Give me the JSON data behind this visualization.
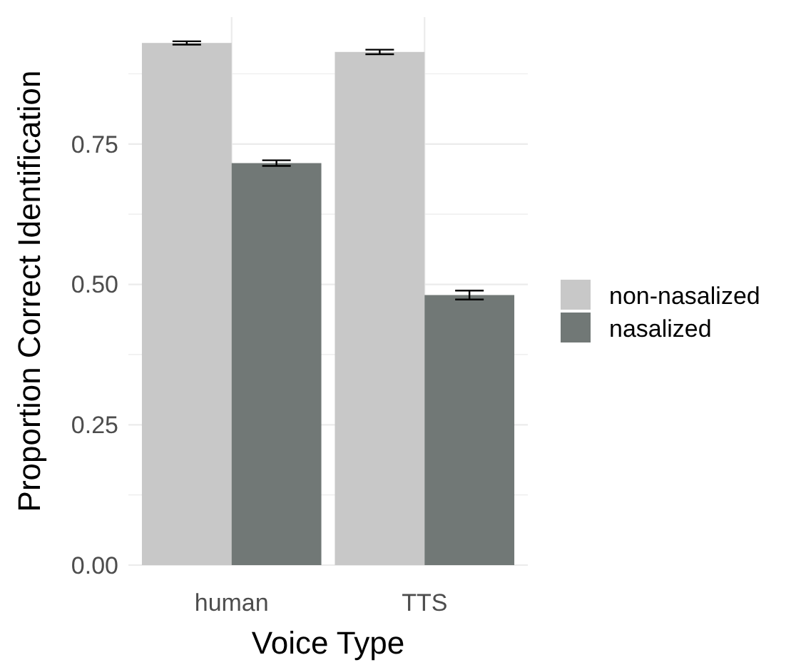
{
  "chart_data": {
    "type": "bar",
    "xlabel": "Voice Type",
    "ylabel": "Proportion Correct Identification",
    "categories": [
      "human",
      "TTS"
    ],
    "series": [
      {
        "name": "non-nasalized",
        "color": "#c8c8c8",
        "values": [
          0.93,
          0.914
        ],
        "errors": [
          0.003,
          0.004
        ]
      },
      {
        "name": "nasalized",
        "color": "#717876",
        "values": [
          0.716,
          0.481
        ],
        "errors": [
          0.005,
          0.008
        ]
      }
    ],
    "ylim": [
      0,
      0.976
    ],
    "yticks": [
      {
        "value": 0,
        "label": "0.00"
      },
      {
        "value": 0.125,
        "label": null
      },
      {
        "value": 0.25,
        "label": "0.25"
      },
      {
        "value": 0.375,
        "label": null
      },
      {
        "value": 0.5,
        "label": "0.50"
      },
      {
        "value": 0.625,
        "label": null
      },
      {
        "value": 0.75,
        "label": "0.75"
      },
      {
        "value": 0.875,
        "label": null
      }
    ],
    "grid": true,
    "legend": "right"
  }
}
